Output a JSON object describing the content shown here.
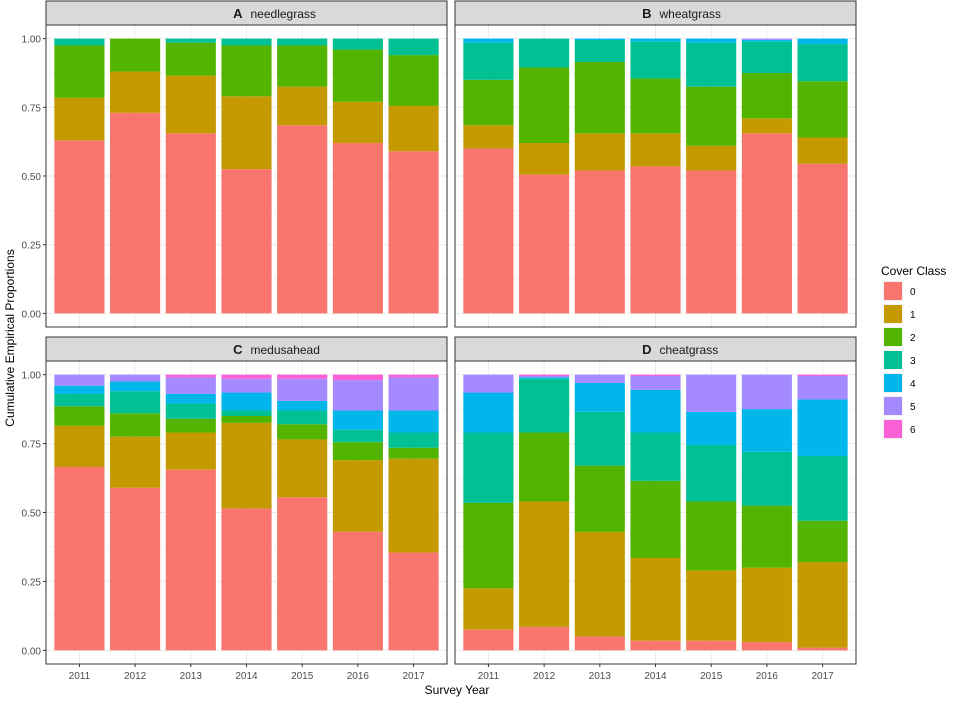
{
  "chart_data": {
    "type": "bar",
    "stacked": true,
    "xlabel": "Survey Year",
    "ylabel": "Cumulative Empirical Proportions",
    "ylim": [
      0,
      1
    ],
    "yticks": [
      "0.00",
      "0.25",
      "0.50",
      "0.75",
      "1.00"
    ],
    "categories": [
      "2011",
      "2012",
      "2013",
      "2014",
      "2015",
      "2016",
      "2017"
    ],
    "legend": {
      "title": "Cover Class",
      "position": "right",
      "entries": [
        {
          "label": "0",
          "color": "#F8766D"
        },
        {
          "label": "1",
          "color": "#C49A00"
        },
        {
          "label": "2",
          "color": "#53B400"
        },
        {
          "label": "3",
          "color": "#00C094"
        },
        {
          "label": "4",
          "color": "#00B6EB"
        },
        {
          "label": "5",
          "color": "#A58AFF"
        },
        {
          "label": "6",
          "color": "#FB61D7"
        }
      ]
    },
    "panels": [
      {
        "letter": "A",
        "species": "needlegrass",
        "cumulative": [
          [
            0.63,
            0.785,
            0.975,
            1.0,
            1.0,
            1.0,
            1.0
          ],
          [
            0.73,
            0.88,
            1.0,
            1.0,
            1.0,
            1.0,
            1.0
          ],
          [
            0.655,
            0.865,
            0.985,
            1.0,
            1.0,
            1.0,
            1.0
          ],
          [
            0.525,
            0.79,
            0.975,
            1.0,
            1.0,
            1.0,
            1.0
          ],
          [
            0.685,
            0.825,
            0.975,
            1.0,
            1.0,
            1.0,
            1.0
          ],
          [
            0.62,
            0.77,
            0.96,
            1.0,
            1.0,
            1.0,
            1.0
          ],
          [
            0.59,
            0.755,
            0.94,
            1.0,
            1.0,
            1.0,
            1.0
          ]
        ]
      },
      {
        "letter": "B",
        "species": "wheatgrass",
        "cumulative": [
          [
            0.6,
            0.685,
            0.85,
            0.985,
            1.0,
            1.0,
            1.0
          ],
          [
            0.505,
            0.62,
            0.895,
            1.0,
            1.0,
            1.0,
            1.0
          ],
          [
            0.52,
            0.655,
            0.915,
            0.995,
            1.0,
            1.0,
            1.0
          ],
          [
            0.535,
            0.655,
            0.855,
            0.99,
            1.0,
            1.0,
            1.0
          ],
          [
            0.52,
            0.61,
            0.825,
            0.985,
            1.0,
            1.0,
            1.0
          ],
          [
            0.655,
            0.71,
            0.875,
            0.99,
            0.995,
            1.0,
            1.0
          ],
          [
            0.545,
            0.64,
            0.845,
            0.98,
            1.0,
            1.0,
            1.0
          ]
        ]
      },
      {
        "letter": "C",
        "species": "medusahead",
        "cumulative": [
          [
            0.665,
            0.815,
            0.885,
            0.93,
            0.96,
            1.0,
            1.0
          ],
          [
            0.59,
            0.775,
            0.86,
            0.94,
            0.975,
            1.0,
            1.0
          ],
          [
            0.655,
            0.79,
            0.84,
            0.895,
            0.93,
            0.99,
            1.0
          ],
          [
            0.515,
            0.825,
            0.85,
            0.87,
            0.935,
            0.985,
            1.0
          ],
          [
            0.555,
            0.765,
            0.82,
            0.87,
            0.905,
            0.985,
            1.0
          ],
          [
            0.43,
            0.69,
            0.755,
            0.8,
            0.87,
            0.98,
            1.0
          ],
          [
            0.355,
            0.695,
            0.735,
            0.79,
            0.87,
            0.99,
            1.0
          ]
        ]
      },
      {
        "letter": "D",
        "species": "cheatgrass",
        "cumulative": [
          [
            0.075,
            0.225,
            0.535,
            0.79,
            0.935,
            1.0,
            1.0
          ],
          [
            0.085,
            0.54,
            0.79,
            0.985,
            0.99,
            0.995,
            1.0
          ],
          [
            0.05,
            0.43,
            0.67,
            0.865,
            0.97,
            1.0,
            1.0
          ],
          [
            0.035,
            0.335,
            0.615,
            0.79,
            0.945,
            0.995,
            1.0
          ],
          [
            0.035,
            0.29,
            0.54,
            0.745,
            0.865,
            1.0,
            1.0
          ],
          [
            0.03,
            0.3,
            0.525,
            0.72,
            0.875,
            1.0,
            1.0
          ],
          [
            0.01,
            0.32,
            0.47,
            0.705,
            0.91,
            0.995,
            1.0
          ]
        ]
      }
    ]
  }
}
